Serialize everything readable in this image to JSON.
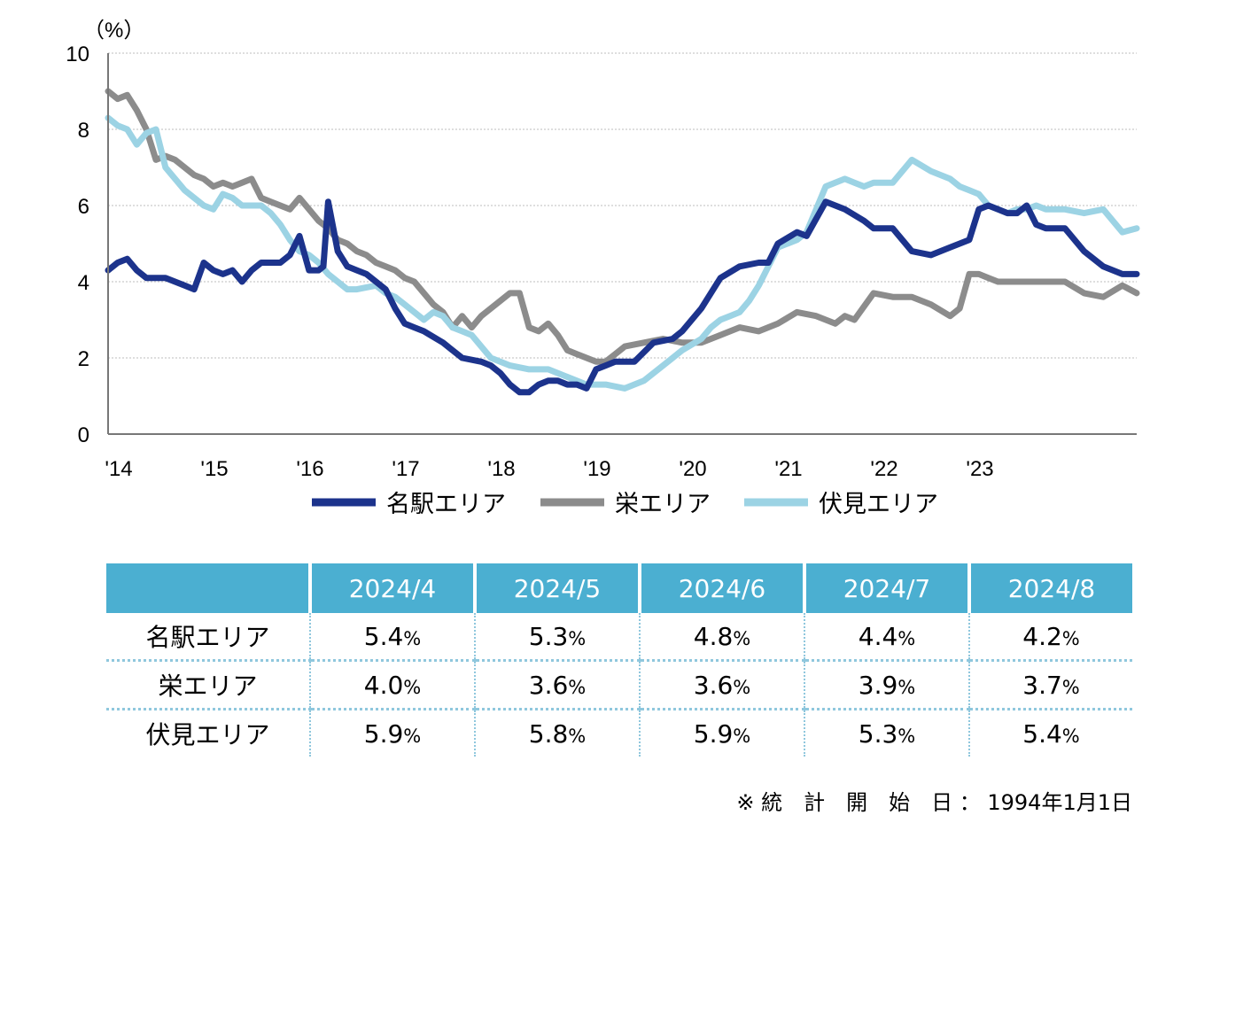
{
  "chart_data": {
    "type": "line",
    "unit_label": "（%）",
    "ylim": [
      0,
      10
    ],
    "y_ticks": [
      "0",
      "2",
      "4",
      "6",
      "8",
      "10"
    ],
    "x_ticks": [
      "'14",
      "'15",
      "'16",
      "'17",
      "'18",
      "'19",
      "'20",
      "'21",
      "'22",
      "'23"
    ],
    "x_range": [
      2014.0,
      2024.75
    ],
    "grid": "horizontal dotted",
    "legend_position": "bottom",
    "series": [
      {
        "name": "名駅エリア",
        "color": "#1c338c",
        "x": [
          2014.0,
          2014.1,
          2014.2,
          2014.3,
          2014.4,
          2014.5,
          2014.6,
          2014.7,
          2014.8,
          2014.9,
          2015.0,
          2015.1,
          2015.2,
          2015.3,
          2015.4,
          2015.5,
          2015.6,
          2015.7,
          2015.8,
          2015.9,
          2016.0,
          2016.1,
          2016.2,
          2016.25,
          2016.3,
          2016.4,
          2016.5,
          2016.6,
          2016.7,
          2016.8,
          2016.9,
          2017.0,
          2017.1,
          2017.2,
          2017.3,
          2017.5,
          2017.7,
          2017.9,
          2018.0,
          2018.1,
          2018.2,
          2018.3,
          2018.4,
          2018.5,
          2018.6,
          2018.7,
          2018.8,
          2018.9,
          2019.0,
          2019.1,
          2019.2,
          2019.3,
          2019.5,
          2019.7,
          2019.9,
          2020.0,
          2020.2,
          2020.4,
          2020.6,
          2020.8,
          2020.9,
          2021.0,
          2021.2,
          2021.3,
          2021.5,
          2021.7,
          2021.9,
          2022.0,
          2022.2,
          2022.4,
          2022.6,
          2022.8,
          2022.9,
          2023.0,
          2023.1,
          2023.2,
          2023.3,
          2023.4,
          2023.5,
          2023.6,
          2023.7,
          2023.8,
          2024.0,
          2024.2,
          2024.4,
          2024.6,
          2024.75
        ],
        "y": [
          4.3,
          4.5,
          4.6,
          4.3,
          4.1,
          4.1,
          4.1,
          4.0,
          3.9,
          3.8,
          4.5,
          4.3,
          4.2,
          4.3,
          4.0,
          4.3,
          4.5,
          4.5,
          4.5,
          4.7,
          5.2,
          4.3,
          4.3,
          4.4,
          6.1,
          4.8,
          4.4,
          4.3,
          4.2,
          4.0,
          3.8,
          3.3,
          2.9,
          2.8,
          2.7,
          2.4,
          2.0,
          1.9,
          1.8,
          1.6,
          1.3,
          1.1,
          1.1,
          1.3,
          1.4,
          1.4,
          1.3,
          1.3,
          1.2,
          1.7,
          1.8,
          1.9,
          1.9,
          2.4,
          2.5,
          2.7,
          3.3,
          4.1,
          4.4,
          4.5,
          4.5,
          5.0,
          5.3,
          5.2,
          6.1,
          5.9,
          5.6,
          5.4,
          5.4,
          4.8,
          4.7,
          4.9,
          5.0,
          5.1,
          5.9,
          6.0,
          5.9,
          5.8,
          5.8,
          6.0,
          5.5,
          5.4,
          5.4,
          4.8,
          4.4,
          4.2,
          4.2
        ]
      },
      {
        "name": "栄エリア",
        "color": "#8c8c8c",
        "x": [
          2014.0,
          2014.1,
          2014.2,
          2014.3,
          2014.4,
          2014.5,
          2014.6,
          2014.7,
          2014.8,
          2014.9,
          2015.0,
          2015.1,
          2015.2,
          2015.3,
          2015.4,
          2015.5,
          2015.6,
          2015.7,
          2015.8,
          2015.9,
          2016.0,
          2016.1,
          2016.2,
          2016.3,
          2016.4,
          2016.5,
          2016.6,
          2016.7,
          2016.8,
          2016.9,
          2017.0,
          2017.1,
          2017.2,
          2017.3,
          2017.4,
          2017.5,
          2017.6,
          2017.7,
          2017.8,
          2017.9,
          2018.0,
          2018.1,
          2018.2,
          2018.3,
          2018.4,
          2018.5,
          2018.6,
          2018.7,
          2018.8,
          2018.9,
          2019.0,
          2019.1,
          2019.2,
          2019.3,
          2019.4,
          2019.6,
          2019.8,
          2020.0,
          2020.2,
          2020.4,
          2020.6,
          2020.8,
          2021.0,
          2021.2,
          2021.4,
          2021.5,
          2021.6,
          2021.7,
          2021.8,
          2022.0,
          2022.2,
          2022.4,
          2022.6,
          2022.8,
          2022.9,
          2023.0,
          2023.1,
          2023.2,
          2023.3,
          2023.5,
          2023.6,
          2023.8,
          2024.0,
          2024.2,
          2024.4,
          2024.6,
          2024.75
        ],
        "y": [
          9.0,
          8.8,
          8.9,
          8.5,
          8.0,
          7.2,
          7.3,
          7.2,
          7.0,
          6.8,
          6.7,
          6.5,
          6.6,
          6.5,
          6.6,
          6.7,
          6.2,
          6.1,
          6.0,
          5.9,
          6.2,
          5.9,
          5.6,
          5.4,
          5.1,
          5.0,
          4.8,
          4.7,
          4.5,
          4.4,
          4.3,
          4.1,
          4.0,
          3.7,
          3.4,
          3.2,
          2.8,
          3.1,
          2.8,
          3.1,
          3.3,
          3.5,
          3.7,
          3.7,
          2.8,
          2.7,
          2.9,
          2.6,
          2.2,
          2.1,
          2.0,
          1.9,
          1.9,
          2.1,
          2.3,
          2.4,
          2.5,
          2.4,
          2.4,
          2.6,
          2.8,
          2.7,
          2.9,
          3.2,
          3.1,
          3.0,
          2.9,
          3.1,
          3.0,
          3.7,
          3.6,
          3.6,
          3.4,
          3.1,
          3.3,
          4.2,
          4.2,
          4.1,
          4.0,
          4.0,
          4.0,
          4.0,
          4.0,
          3.7,
          3.6,
          3.9,
          3.7
        ]
      },
      {
        "name": "伏見エリア",
        "color": "#9cd3e4",
        "x": [
          2014.0,
          2014.1,
          2014.2,
          2014.3,
          2014.4,
          2014.5,
          2014.6,
          2014.7,
          2014.8,
          2014.9,
          2015.0,
          2015.1,
          2015.2,
          2015.3,
          2015.4,
          2015.5,
          2015.6,
          2015.7,
          2015.8,
          2015.9,
          2016.0,
          2016.1,
          2016.2,
          2016.3,
          2016.4,
          2016.5,
          2016.6,
          2016.8,
          2016.9,
          2017.0,
          2017.1,
          2017.2,
          2017.3,
          2017.4,
          2017.5,
          2017.6,
          2017.7,
          2017.8,
          2017.9,
          2018.0,
          2018.2,
          2018.4,
          2018.6,
          2018.8,
          2019.0,
          2019.2,
          2019.4,
          2019.6,
          2019.8,
          2020.0,
          2020.2,
          2020.3,
          2020.4,
          2020.5,
          2020.6,
          2020.7,
          2020.8,
          2020.9,
          2021.0,
          2021.2,
          2021.3,
          2021.5,
          2021.7,
          2021.8,
          2021.9,
          2022.0,
          2022.2,
          2022.4,
          2022.6,
          2022.8,
          2022.9,
          2023.0,
          2023.1,
          2023.2,
          2023.3,
          2023.4,
          2023.5,
          2023.6,
          2023.7,
          2023.8,
          2024.0,
          2024.2,
          2024.4,
          2024.6,
          2024.75
        ],
        "y": [
          8.3,
          8.1,
          8.0,
          7.6,
          7.9,
          8.0,
          7.0,
          6.7,
          6.4,
          6.2,
          6.0,
          5.9,
          6.3,
          6.2,
          6.0,
          6.0,
          6.0,
          5.8,
          5.5,
          5.1,
          4.8,
          4.7,
          4.5,
          4.2,
          4.0,
          3.8,
          3.8,
          3.9,
          3.7,
          3.6,
          3.4,
          3.2,
          3.0,
          3.2,
          3.1,
          2.8,
          2.7,
          2.6,
          2.3,
          2.0,
          1.8,
          1.7,
          1.7,
          1.5,
          1.3,
          1.3,
          1.2,
          1.4,
          1.8,
          2.2,
          2.5,
          2.8,
          3.0,
          3.1,
          3.2,
          3.5,
          3.9,
          4.4,
          4.9,
          5.1,
          5.3,
          6.5,
          6.7,
          6.6,
          6.5,
          6.6,
          6.6,
          7.2,
          6.9,
          6.7,
          6.5,
          6.4,
          6.3,
          6.0,
          5.9,
          5.8,
          5.9,
          5.9,
          6.0,
          5.9,
          5.9,
          5.8,
          5.9,
          5.3,
          5.4
        ]
      }
    ]
  },
  "table": {
    "headers": [
      "2024/4",
      "2024/5",
      "2024/6",
      "2024/7",
      "2024/8"
    ],
    "percent_sign": "%",
    "rows": [
      {
        "label": "名駅エリア",
        "values": [
          "5.4",
          "5.3",
          "4.8",
          "4.4",
          "4.2"
        ]
      },
      {
        "label": "栄エリア",
        "values": [
          "4.0",
          "3.6",
          "3.6",
          "3.9",
          "3.7"
        ]
      },
      {
        "label": "伏見エリア",
        "values": [
          "5.9",
          "5.8",
          "5.9",
          "5.3",
          "5.4"
        ]
      }
    ]
  },
  "footnote": "※ 統　計　開　始　日 ： 1994年1月1日"
}
